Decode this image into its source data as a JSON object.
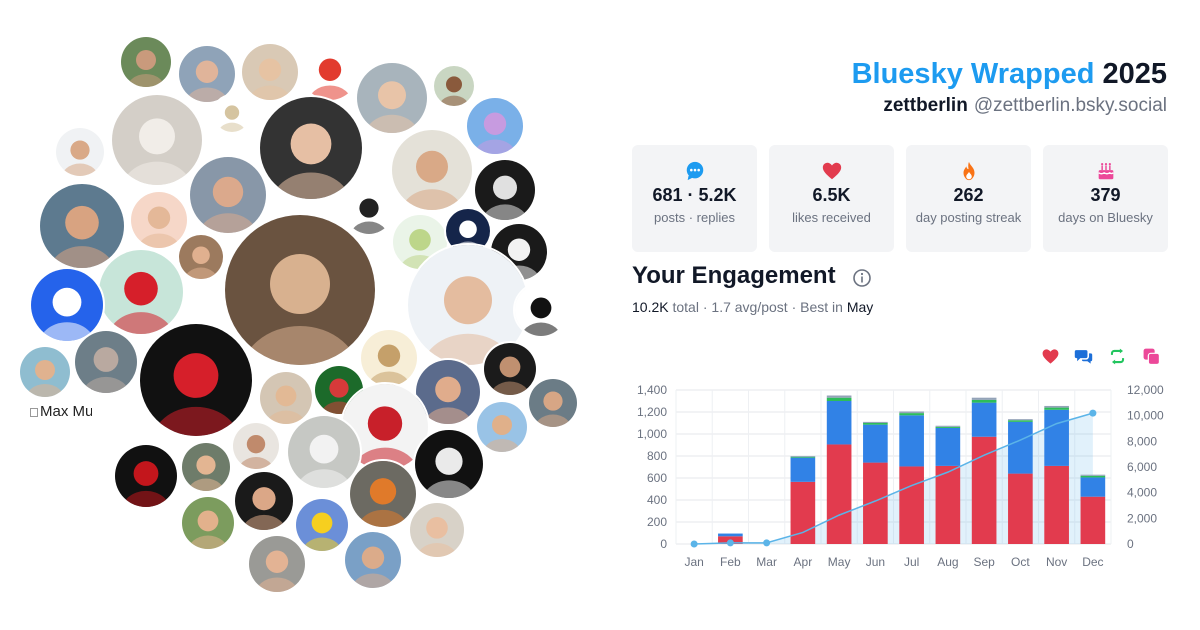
{
  "header": {
    "brand": "Bluesky Wrapped",
    "year": "2025",
    "username": "zettberlin",
    "handle": "@zettberlin.bsky.social"
  },
  "stats": [
    {
      "icon": "speech-bubble-icon",
      "value": "681 · 5.2K",
      "label": "posts · replies",
      "color": "#1d9bf0"
    },
    {
      "icon": "heart-icon",
      "value": "6.5K",
      "label": "likes received",
      "color": "#e23b4e"
    },
    {
      "icon": "flame-icon",
      "value": "262",
      "label": "day posting streak",
      "color": "#f97316"
    },
    {
      "icon": "birthday-cake-icon",
      "value": "379",
      "label": "days on Bluesky",
      "color": "#ec4899"
    }
  ],
  "engagement": {
    "title": "Your Engagement",
    "total_value": "10.2K",
    "total_label": "total",
    "avg": "1.7 avg/post",
    "best_label": "Best in",
    "best_month": "May",
    "legend_icons": [
      {
        "icon": "heart-icon",
        "color": "#e23b4e"
      },
      {
        "icon": "replies-icon",
        "color": "#1d6fd8"
      },
      {
        "icon": "repost-icon",
        "color": "#22c55e"
      },
      {
        "icon": "quote-icon",
        "color": "#ec4899"
      }
    ]
  },
  "broken_image": {
    "alt": "Max Mustermann"
  },
  "chart_data": {
    "type": "bar",
    "categories": [
      "Jan",
      "Feb",
      "Mar",
      "Apr",
      "May",
      "Jun",
      "Jul",
      "Aug",
      "Sep",
      "Oct",
      "Nov",
      "Dec"
    ],
    "series": [
      {
        "values": [
          0,
          70,
          0,
          565,
          905,
          740,
          705,
          710,
          975,
          640,
          710,
          430
        ],
        "color": "#e23b4e"
      },
      {
        "values": [
          0,
          25,
          0,
          220,
          395,
          345,
          465,
          345,
          310,
          470,
          510,
          175
        ],
        "color": "#3182e6"
      },
      {
        "values": [
          0,
          0,
          0,
          8,
          30,
          15,
          20,
          10,
          25,
          15,
          20,
          15
        ],
        "color": "#2dbd5a"
      },
      {
        "values": [
          0,
          0,
          0,
          7,
          20,
          10,
          15,
          10,
          20,
          10,
          15,
          10
        ],
        "color": "#94a3b8"
      }
    ],
    "cumulative": {
      "values": [
        0,
        90,
        90,
        900,
        2250,
        3350,
        4550,
        5600,
        6920,
        8100,
        9380,
        10200
      ],
      "color": "#5bb4e8"
    },
    "ylim": [
      0,
      1400
    ],
    "yticks": [
      "0",
      "200",
      "400",
      "600",
      "800",
      "1,000",
      "1,200",
      "1,400"
    ],
    "y2lim": [
      0,
      12000
    ],
    "y2ticks": [
      "0",
      "2,000",
      "4,000",
      "6,000",
      "8,000",
      "10,000",
      "12,000"
    ],
    "grid": true
  }
}
